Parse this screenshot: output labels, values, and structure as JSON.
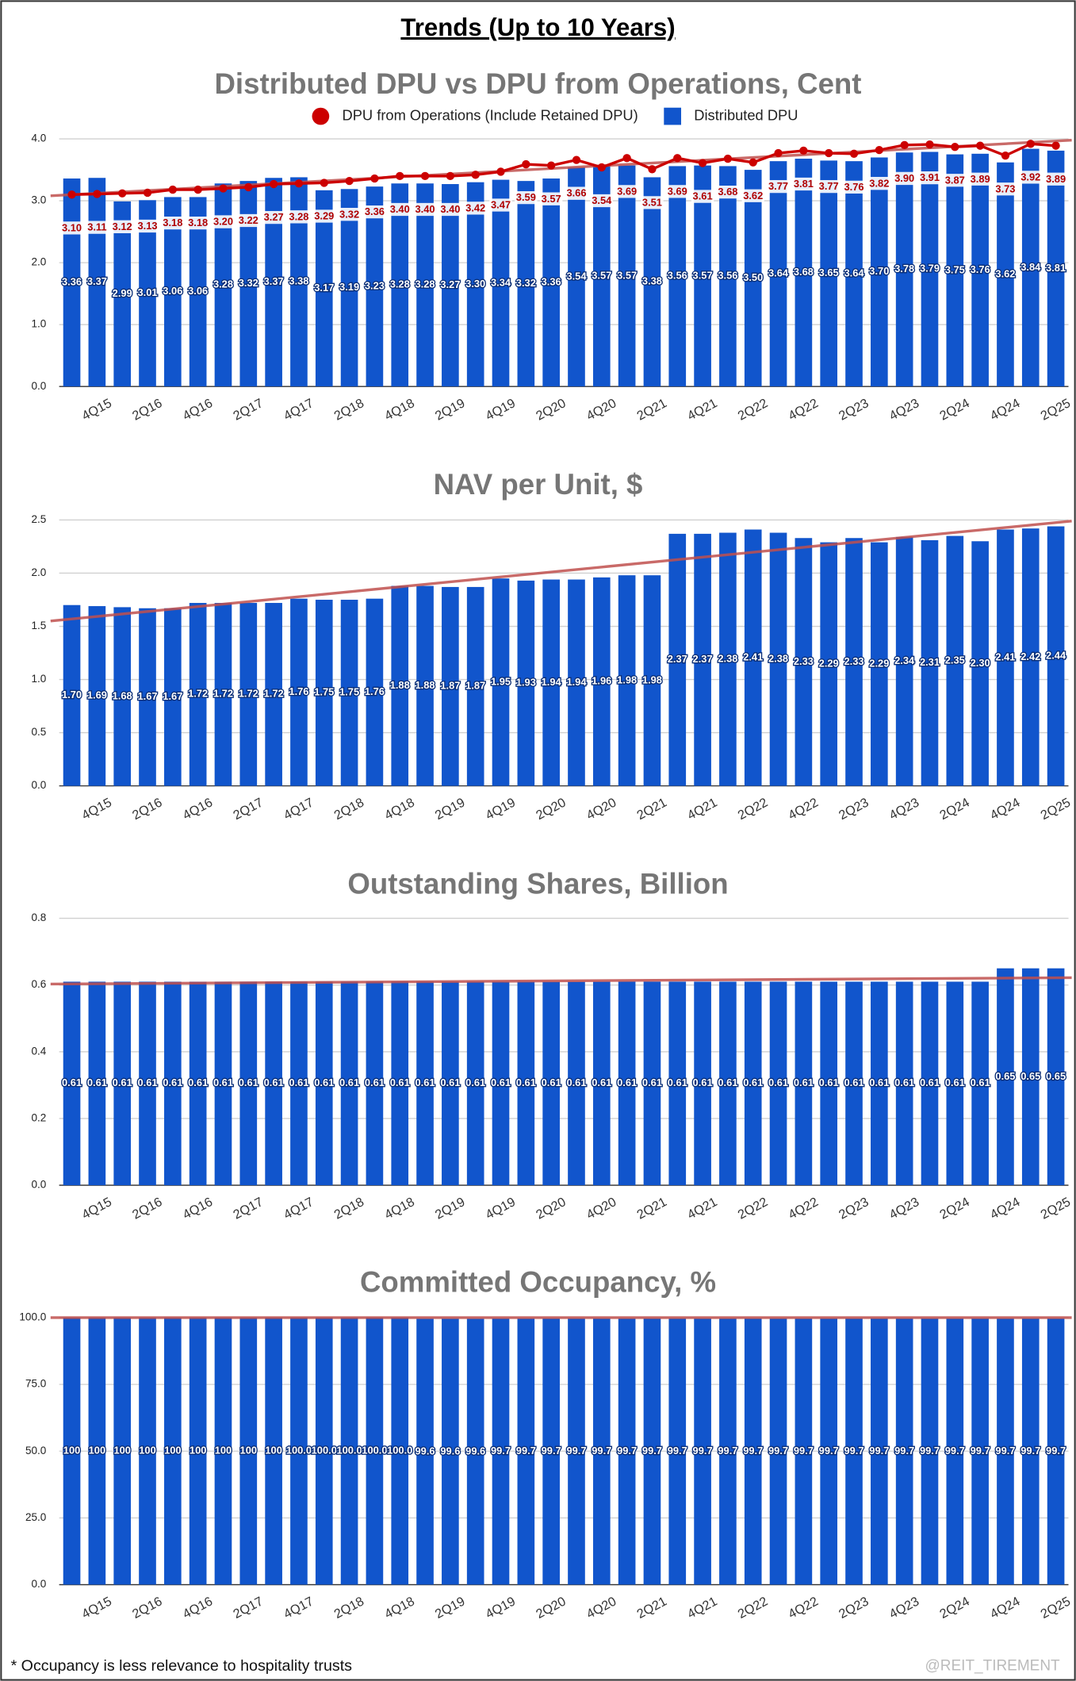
{
  "title": "Trends (Up to 10 Years)",
  "footnote": "* Occupancy is less relevance to hospitality trusts",
  "watermark": "@REIT_TIREMENT",
  "chart_data": [
    {
      "type": "bar",
      "title": "Distributed DPU vs DPU from Operations, Cent",
      "legend": true,
      "categories": [
        null,
        "4Q15",
        null,
        "2Q16",
        null,
        "4Q16",
        null,
        "2Q17",
        null,
        "4Q17",
        null,
        "2Q18",
        null,
        "4Q18",
        null,
        "2Q19",
        null,
        "4Q19",
        null,
        "2Q20",
        null,
        "4Q20",
        null,
        "2Q21",
        null,
        "4Q21",
        null,
        "2Q22",
        null,
        "4Q22",
        null,
        "2Q23",
        null,
        "4Q23",
        null,
        "2Q24",
        null,
        "4Q24",
        null,
        "2Q25"
      ],
      "series": [
        {
          "name": "DPU from Operations (Include Retained DPU)",
          "type": "line",
          "color": "#cc0000",
          "values": [
            3.1,
            3.11,
            3.12,
            3.13,
            3.18,
            3.18,
            3.2,
            3.22,
            3.27,
            3.28,
            3.29,
            3.32,
            3.36,
            3.4,
            3.4,
            3.4,
            3.42,
            3.47,
            3.59,
            3.57,
            3.66,
            3.54,
            3.69,
            3.51,
            3.69,
            3.61,
            3.68,
            3.62,
            3.77,
            3.81,
            3.77,
            3.76,
            3.82,
            3.9,
            3.91,
            3.87,
            3.89,
            3.73,
            3.92,
            3.89
          ],
          "value_labels": [
            "3.10",
            "3.11",
            "3.12",
            "3.13",
            "3.18",
            "3.18",
            "3.20",
            "3.22",
            "3.27",
            "3.28",
            "3.29",
            "3.32",
            "3.36",
            "3.40",
            "3.40",
            "3.40",
            "3.42",
            "3.47",
            "3.59",
            "3.57",
            "3.66",
            "3.54",
            "3.69",
            "3.51",
            "3.69",
            "3.61",
            "3.68",
            "3.62",
            "3.77",
            "3.81",
            "3.77",
            "3.76",
            "3.82",
            "3.90",
            "3.91",
            "3.87",
            "3.89",
            "3.73",
            "3.92",
            "3.89"
          ]
        },
        {
          "name": "Distributed DPU",
          "type": "bar",
          "color": "#1155cc",
          "values": [
            3.36,
            3.37,
            2.99,
            3.01,
            3.06,
            3.06,
            3.28,
            3.32,
            3.37,
            3.38,
            3.17,
            3.19,
            3.23,
            3.28,
            3.28,
            3.27,
            3.3,
            3.34,
            3.32,
            3.36,
            3.54,
            3.57,
            3.57,
            3.38,
            3.56,
            3.57,
            3.56,
            3.5,
            3.64,
            3.68,
            3.65,
            3.64,
            3.7,
            3.78,
            3.79,
            3.75,
            3.76,
            3.62,
            3.84,
            3.81
          ],
          "value_labels": [
            "3.36",
            "3.37",
            "2.99",
            "3.01",
            "3.06",
            "3.06",
            "3.28",
            "3.32",
            "3.37",
            "3.38",
            "3.17",
            "3.19",
            "3.23",
            "3.28",
            "3.28",
            "3.27",
            "3.30",
            "3.34",
            "3.32",
            "3.36",
            "3.54",
            "3.57",
            "3.57",
            "3.38",
            "3.56",
            "3.57",
            "3.56",
            "3.50",
            "3.64",
            "3.68",
            "3.65",
            "3.64",
            "3.70",
            "3.78",
            "3.79",
            "3.75",
            "3.76",
            "3.62",
            "3.84",
            "3.81"
          ]
        }
      ],
      "trendline": [
        3.08,
        3.98
      ],
      "trend_color": "#c0504d",
      "ylim": [
        0,
        4
      ],
      "yticks": [
        {
          "value": 0,
          "label": "0.0"
        },
        {
          "value": 1,
          "label": "1.0"
        },
        {
          "value": 2,
          "label": "2.0"
        },
        {
          "value": 3,
          "label": "3.0"
        },
        {
          "value": 4,
          "label": "4.0"
        }
      ],
      "grid": true
    },
    {
      "type": "bar",
      "title": "NAV per Unit, $",
      "categories": [
        null,
        "4Q15",
        null,
        "2Q16",
        null,
        "4Q16",
        null,
        "2Q17",
        null,
        "4Q17",
        null,
        "2Q18",
        null,
        "4Q18",
        null,
        "2Q19",
        null,
        "4Q19",
        null,
        "2Q20",
        null,
        "4Q20",
        null,
        "2Q21",
        null,
        "4Q21",
        null,
        "2Q22",
        null,
        "4Q22",
        null,
        "2Q23",
        null,
        "4Q23",
        null,
        "2Q24",
        null,
        "4Q24",
        null,
        "2Q25"
      ],
      "series": [
        {
          "type": "bar",
          "color": "#1155cc",
          "values": [
            1.7,
            1.69,
            1.68,
            1.67,
            1.67,
            1.72,
            1.72,
            1.72,
            1.72,
            1.76,
            1.75,
            1.75,
            1.76,
            1.88,
            1.88,
            1.87,
            1.87,
            1.95,
            1.93,
            1.94,
            1.94,
            1.96,
            1.98,
            1.98,
            2.37,
            2.37,
            2.38,
            2.41,
            2.38,
            2.33,
            2.29,
            2.33,
            2.29,
            2.34,
            2.31,
            2.35,
            2.3,
            2.41,
            2.42,
            2.44
          ],
          "value_labels": [
            "1.70",
            "1.69",
            "1.68",
            "1.67",
            "1.67",
            "1.72",
            "1.72",
            "1.72",
            "1.72",
            "1.76",
            "1.75",
            "1.75",
            "1.76",
            "1.88",
            "1.88",
            "1.87",
            "1.87",
            "1.95",
            "1.93",
            "1.94",
            "1.94",
            "1.96",
            "1.98",
            "1.98",
            "2.37",
            "2.37",
            "2.38",
            "2.41",
            "2.38",
            "2.33",
            "2.29",
            "2.33",
            "2.29",
            "2.34",
            "2.31",
            "2.35",
            "2.30",
            "2.41",
            "2.42",
            "2.44"
          ]
        }
      ],
      "trendline": [
        1.55,
        2.49
      ],
      "trend_color": "#c0504d",
      "ylim": [
        0,
        2.5
      ],
      "yticks": [
        {
          "value": 0,
          "label": "0.0"
        },
        0.5,
        {
          "value": 1,
          "label": "1.0"
        },
        1.5,
        {
          "value": 2,
          "label": "2.0"
        },
        2.5
      ],
      "grid": true
    },
    {
      "type": "bar",
      "title": "Outstanding Shares, Billion",
      "categories": [
        null,
        "4Q15",
        null,
        "2Q16",
        null,
        "4Q16",
        null,
        "2Q17",
        null,
        "4Q17",
        null,
        "2Q18",
        null,
        "4Q18",
        null,
        "2Q19",
        null,
        "4Q19",
        null,
        "2Q20",
        null,
        "4Q20",
        null,
        "2Q21",
        null,
        "4Q21",
        null,
        "2Q22",
        null,
        "4Q22",
        null,
        "2Q23",
        null,
        "4Q23",
        null,
        "2Q24",
        null,
        "4Q24",
        null,
        "2Q25"
      ],
      "series": [
        {
          "type": "bar",
          "color": "#1155cc",
          "values": [
            0.61,
            0.61,
            0.61,
            0.61,
            0.61,
            0.61,
            0.61,
            0.61,
            0.61,
            0.61,
            0.61,
            0.61,
            0.61,
            0.61,
            0.61,
            0.61,
            0.61,
            0.61,
            0.61,
            0.61,
            0.61,
            0.61,
            0.61,
            0.61,
            0.61,
            0.61,
            0.61,
            0.61,
            0.61,
            0.61,
            0.61,
            0.61,
            0.61,
            0.61,
            0.61,
            0.61,
            0.61,
            0.65,
            0.65,
            0.65
          ]
        }
      ],
      "trendline": [
        0.603,
        0.622
      ],
      "trend_color": "#c0504d",
      "ylim": [
        0,
        0.8
      ],
      "yticks": [
        {
          "value": 0,
          "label": "0.0"
        },
        0.2,
        0.4,
        0.6,
        0.8
      ],
      "grid": true
    },
    {
      "type": "bar",
      "title": "Committed Occupancy, %",
      "categories": [
        null,
        "4Q15",
        null,
        "2Q16",
        null,
        "4Q16",
        null,
        "2Q17",
        null,
        "4Q17",
        null,
        "2Q18",
        null,
        "4Q18",
        null,
        "2Q19",
        null,
        "4Q19",
        null,
        "2Q20",
        null,
        "4Q20",
        null,
        "2Q21",
        null,
        "4Q21",
        null,
        "2Q22",
        null,
        "4Q22",
        null,
        "2Q23",
        null,
        "4Q23",
        null,
        "2Q24",
        null,
        "4Q24",
        null,
        "2Q25"
      ],
      "series": [
        {
          "type": "bar",
          "color": "#1155cc",
          "values": [
            100,
            100,
            100,
            100,
            100,
            100,
            100,
            100,
            100,
            100,
            100,
            100,
            100,
            100,
            99.6,
            99.6,
            99.6,
            99.7,
            99.7,
            99.7,
            99.7,
            99.7,
            99.7,
            99.7,
            99.7,
            99.7,
            99.7,
            99.7,
            99.7,
            99.7,
            99.7,
            99.7,
            99.7,
            99.7,
            99.7,
            99.7,
            99.7,
            99.7,
            99.7,
            99.7
          ],
          "value_labels": [
            "100",
            "100",
            "100",
            "100",
            "100",
            "100",
            "100",
            "100",
            "100",
            "100.0",
            "100.0",
            "100.0",
            "100.0",
            "100.0",
            "99.6",
            "99.6",
            "99.6",
            "99.7",
            "99.7",
            "99.7",
            "99.7",
            "99.7",
            "99.7",
            "99.7",
            "99.7",
            "99.7",
            "99.7",
            "99.7",
            "99.7",
            "99.7",
            "99.7",
            "99.7",
            "99.7",
            "99.7",
            "99.7",
            "99.7",
            "99.7",
            "99.7",
            "99.7",
            "99.7"
          ]
        }
      ],
      "trendline": [
        100,
        100
      ],
      "trend_color": "#c0504d",
      "ylim": [
        0,
        100
      ],
      "yticks": [
        {
          "value": 0,
          "label": "0.0"
        },
        {
          "value": 25,
          "label": "25.0"
        },
        {
          "value": 50,
          "label": "50.0"
        },
        {
          "value": 75,
          "label": "75.0"
        },
        {
          "value": 100,
          "label": "100.0"
        }
      ],
      "grid": true
    }
  ]
}
